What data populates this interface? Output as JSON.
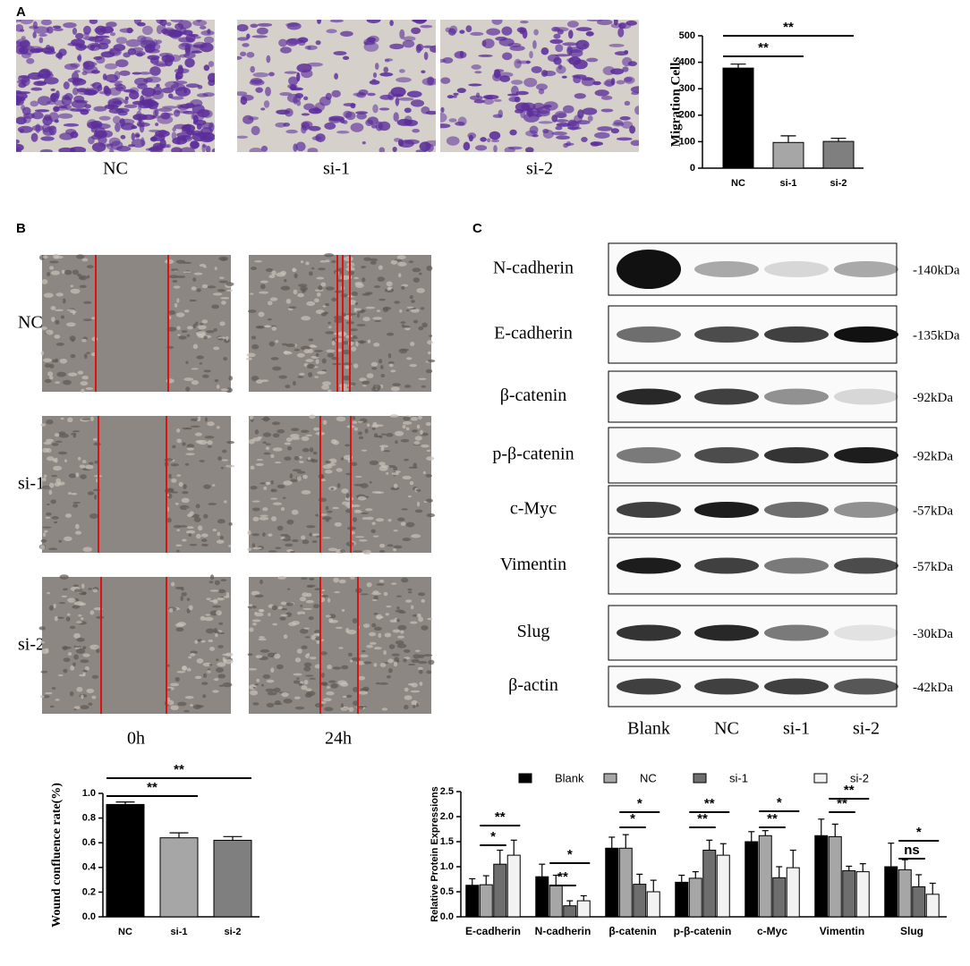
{
  "panel_labels": [
    "A",
    "B",
    "C"
  ],
  "migration_images": [
    "NC",
    "si-1",
    "si-2"
  ],
  "wound_rows": [
    "NC",
    "si-1",
    "si-2"
  ],
  "wound_times": [
    "0h",
    "24h"
  ],
  "blot": {
    "proteins": [
      "N-cadherin",
      "E-cadherin",
      "β-catenin",
      "p-β-catenin",
      "c-Myc",
      "Vimentin",
      "Slug",
      "β-actin"
    ],
    "sizes": [
      "-140kDa",
      "-135kDa",
      "-92kDa",
      "-92kDa",
      "-57kDa",
      "-57kDa",
      "-30kDa",
      "-42kDa"
    ],
    "lanes": [
      "Blank",
      "NC",
      "si-1",
      "si-2"
    ]
  },
  "chart_data": [
    {
      "type": "bar",
      "y_label": "Migration Cells",
      "categories": [
        "NC",
        "si-1",
        "si-2"
      ],
      "values": [
        378,
        97,
        101
      ],
      "errors": [
        15,
        25,
        12
      ],
      "colors": [
        "#000000",
        "#a6a6a6",
        "#7f7f7f"
      ],
      "ylim": [
        0,
        500
      ],
      "yticks": [
        0,
        100,
        200,
        300,
        400,
        500
      ],
      "annotations": [
        "**",
        "**"
      ]
    },
    {
      "type": "bar",
      "y_label": "Wound confluence rate(%)",
      "categories": [
        "NC",
        "si-1",
        "si-2"
      ],
      "values": [
        0.91,
        0.64,
        0.62
      ],
      "errors": [
        0.02,
        0.04,
        0.03
      ],
      "colors": [
        "#000000",
        "#a6a6a6",
        "#7f7f7f"
      ],
      "ylim": [
        0,
        1
      ],
      "yticks": [
        {
          "value": 0,
          "label": "0.0"
        },
        0.2,
        0.4,
        0.6,
        0.8,
        {
          "value": 1,
          "label": "1.0"
        }
      ],
      "annotations": [
        "**",
        "**"
      ]
    },
    {
      "type": "bar",
      "y_label": "Relative Protein Expressions",
      "categories": [
        "E-cadherin",
        "N-cadherin",
        "β-catenin",
        "p-β-catenin",
        "c-Myc",
        "Vimentin",
        "Slug"
      ],
      "series": [
        {
          "name": "Blank",
          "color": "#000000",
          "values": [
            0.63,
            0.8,
            1.37,
            0.69,
            1.5,
            1.62,
            1.0
          ],
          "errors": [
            0.13,
            0.25,
            0.22,
            0.14,
            0.2,
            0.33,
            0.47
          ]
        },
        {
          "name": "NC",
          "color": "#a6a6a6",
          "values": [
            0.64,
            0.63,
            1.37,
            0.77,
            1.62,
            1.6,
            0.94
          ],
          "errors": [
            0.18,
            0.2,
            0.27,
            0.13,
            0.1,
            0.25,
            0.2
          ]
        },
        {
          "name": "si-1",
          "color": "#6e6e6e",
          "values": [
            1.05,
            0.22,
            0.65,
            1.33,
            0.78,
            0.92,
            0.6
          ],
          "errors": [
            0.28,
            0.1,
            0.2,
            0.2,
            0.22,
            0.09,
            0.24
          ]
        },
        {
          "name": "si-2",
          "color": "#f2f2f2",
          "values": [
            1.23,
            0.32,
            0.5,
            1.23,
            0.98,
            0.9,
            0.45
          ],
          "errors": [
            0.3,
            0.1,
            0.23,
            0.23,
            0.35,
            0.16,
            0.22
          ]
        }
      ],
      "ylim": [
        0,
        2.5
      ],
      "yticks": [
        {
          "value": 0,
          "label": "0.0"
        },
        0.5,
        {
          "value": 1,
          "label": "1.0"
        },
        1.5,
        {
          "value": 2,
          "label": "2.0"
        },
        2.5
      ],
      "annotations": [
        "*",
        "**",
        "**",
        "*",
        "*",
        "*",
        "**",
        "**",
        "**",
        "*",
        "**",
        "**",
        "ns",
        "*"
      ]
    }
  ]
}
